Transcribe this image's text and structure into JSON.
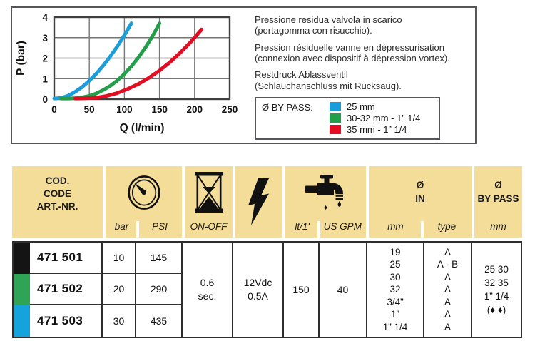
{
  "panel": {
    "descriptions": [
      {
        "line1": "Pressione residua valvola in scarico",
        "line2": "(portagomma con risucchio)."
      },
      {
        "line1": "Pression résiduelle vanne en dépressurisation",
        "line2": "(connexion avec dispositif à dépression vortex)."
      },
      {
        "line1": "Restdruck Ablassventil",
        "line2": "(Schlauchanschluss mit Rücksaug)."
      }
    ],
    "legend": {
      "title": "Ø BY PASS:",
      "items": [
        {
          "color": "#1A9DD9",
          "label": "25 mm"
        },
        {
          "color": "#239E4B",
          "label": "30-32 mm - 1” 1/4"
        },
        {
          "color": "#E30D23",
          "label": "35 mm - 1” 1/4"
        }
      ]
    }
  },
  "chart_data": {
    "type": "line",
    "title": "",
    "xlabel": "Q (l/min)",
    "ylabel": "P (bar)",
    "xlim": [
      0,
      250
    ],
    "ylim": [
      0,
      4
    ],
    "xticks": [
      0,
      50,
      100,
      150,
      200,
      250
    ],
    "yticks": [
      0,
      1,
      2,
      3,
      4
    ],
    "grid": true,
    "legend_position": "outside-right",
    "series": [
      {
        "name": "25 mm",
        "color": "#1A9DD9",
        "x": [
          0,
          10,
          20,
          30,
          40,
          50,
          60,
          70,
          80,
          90,
          100,
          110
        ],
        "y": [
          0.03,
          0.06,
          0.17,
          0.36,
          0.6,
          0.9,
          1.24,
          1.64,
          2.09,
          2.58,
          3.12,
          3.7
        ]
      },
      {
        "name": "30-32 mm - 1” 1/4",
        "color": "#239E4B",
        "x": [
          10,
          20,
          30,
          40,
          50,
          60,
          70,
          80,
          90,
          100,
          110,
          120,
          130,
          140,
          150
        ],
        "y": [
          0.03,
          0.03,
          0.05,
          0.09,
          0.16,
          0.28,
          0.45,
          0.65,
          0.91,
          1.23,
          1.6,
          2.03,
          2.52,
          3.07,
          3.7
        ]
      },
      {
        "name": "35 mm - 1” 1/4",
        "color": "#E30D23",
        "x": [
          30,
          45,
          60,
          75,
          90,
          105,
          120,
          135,
          150,
          165,
          180,
          195,
          210
        ],
        "y": [
          0.03,
          0.04,
          0.07,
          0.16,
          0.3,
          0.5,
          0.74,
          1.04,
          1.39,
          1.81,
          2.28,
          2.81,
          3.4
        ]
      }
    ]
  },
  "table": {
    "header": {
      "code": "COD.\nCODE\nART.-NR.",
      "pressure_units": {
        "left": "bar",
        "right": "PSI"
      },
      "onoff": "ON-OFF",
      "flow_units": {
        "left": "lt/1'",
        "right": "US GPM"
      },
      "flow_marker": "♦",
      "in_title": "Ø\nIN",
      "in_units": {
        "left": "mm",
        "right": "type"
      },
      "bypass_title": "Ø\nBY PASS",
      "bypass_unit": "mm"
    },
    "rows": [
      {
        "swatch": "#141414",
        "code": "471 501",
        "bar": "10",
        "psi": "145"
      },
      {
        "swatch": "#2FA356",
        "code": "471 502",
        "bar": "20",
        "psi": "290"
      },
      {
        "swatch": "#15A3DC",
        "code": "471 503",
        "bar": "30",
        "psi": "435"
      }
    ],
    "merged": {
      "onoff": "0.6\nsec.",
      "electric": "12Vdc\n0.5A",
      "lt": "150",
      "usgpm": "40",
      "in_mm": [
        "19",
        "25",
        "30",
        "32",
        "3/4”",
        "1”",
        "1” 1/4"
      ],
      "in_type": [
        "A",
        "A - B",
        "A",
        "A",
        "A",
        "A",
        "A"
      ],
      "bypass": [
        "25 30",
        "32 35",
        "1” 1/4",
        "(♦ ♦)"
      ]
    }
  },
  "icons": {
    "gauge-icon": "dial with needle",
    "hourglass-icon": "⌛",
    "lightning-icon": "⚡",
    "tap-icon": "🚰 with drop",
    "diamond-icon": "♦"
  },
  "colors": {
    "header_yellow": "#F3DD98",
    "border_dark": "#2E2E2E",
    "panel_border": "#55565A"
  }
}
